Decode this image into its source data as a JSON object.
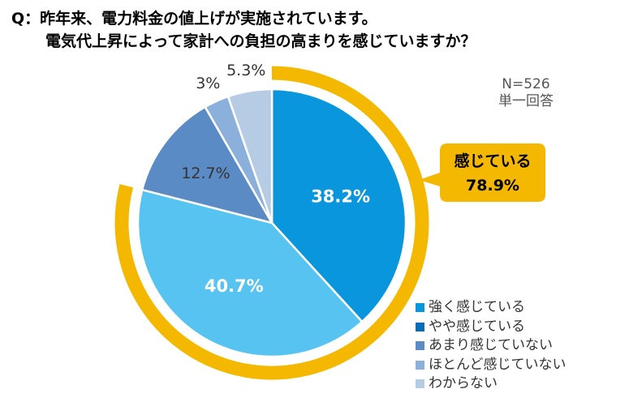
{
  "question": {
    "line1": "Q：昨年来、電力料金の値上げが実施されています。",
    "line2": "電気代上昇によって家計への負担の高まりを感じていますか？"
  },
  "sample": {
    "n": "N=526",
    "type": "単一回答"
  },
  "callout": {
    "label": "感じている",
    "value": "78.9%",
    "color": "#f5b800"
  },
  "chart_data": {
    "type": "pie",
    "categories": [
      "強く感じている",
      "やや感じている",
      "あまり感じていない",
      "ほとんど感じていない",
      "わからない"
    ],
    "values": [
      38.2,
      40.7,
      12.7,
      3.0,
      5.3
    ],
    "data_labels": [
      "38.2%",
      "40.7%",
      "12.7%",
      "3%",
      "5.3%"
    ],
    "colors": [
      "#0a96dc",
      "#57c3f0",
      "#5b8bc4",
      "#8ab0db",
      "#b6cbe4"
    ],
    "legend_placement": "bottom-right",
    "legend_colors": [
      "#0a96dc",
      "#0b6db5",
      "#5b8bc4",
      "#8ab0db",
      "#b6cbe4"
    ]
  }
}
